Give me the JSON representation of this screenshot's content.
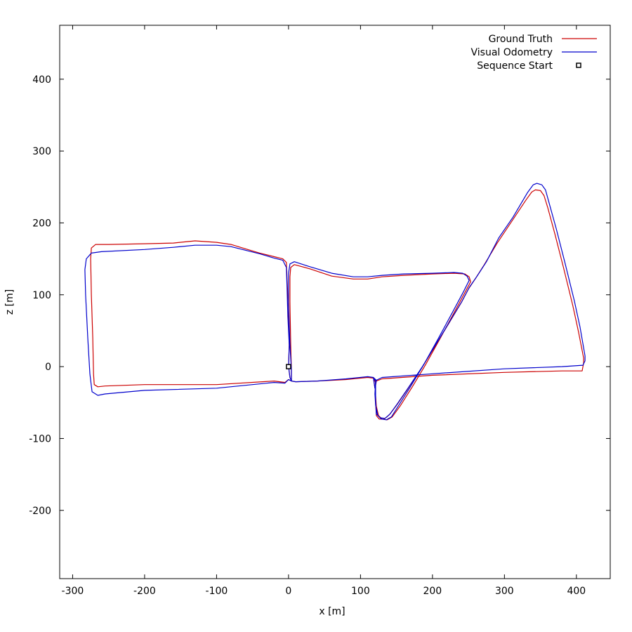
{
  "chart_data": {
    "type": "line",
    "xlabel": "x [m]",
    "ylabel": "z [m]",
    "xlim": [
      -318,
      447
    ],
    "ylim": [
      -295,
      475
    ],
    "xticks": [
      -300,
      -200,
      -100,
      0,
      100,
      200,
      300,
      400
    ],
    "yticks": [
      -200,
      -100,
      0,
      100,
      200,
      300,
      400
    ],
    "grid": false,
    "legend_position": "top-right",
    "series": [
      {
        "name": "Ground Truth",
        "color": "#cc0000",
        "points": [
          [
            0,
            0
          ],
          [
            2,
            -15
          ],
          [
            4,
            -20
          ],
          [
            10,
            -21
          ],
          [
            40,
            -20
          ],
          [
            80,
            -18
          ],
          [
            110,
            -15
          ],
          [
            118,
            -16
          ],
          [
            121,
            -22
          ],
          [
            121,
            -50
          ],
          [
            122,
            -68
          ],
          [
            126,
            -73
          ],
          [
            133,
            -73
          ],
          [
            140,
            -67
          ],
          [
            150,
            -54
          ],
          [
            165,
            -32
          ],
          [
            185,
            -2
          ],
          [
            205,
            31
          ],
          [
            225,
            64
          ],
          [
            240,
            89
          ],
          [
            250,
            108
          ],
          [
            260,
            123
          ],
          [
            272,
            142
          ],
          [
            290,
            172
          ],
          [
            310,
            202
          ],
          [
            330,
            232
          ],
          [
            338,
            243
          ],
          [
            343,
            246
          ],
          [
            350,
            245
          ],
          [
            355,
            238
          ],
          [
            360,
            222
          ],
          [
            370,
            185
          ],
          [
            382,
            138
          ],
          [
            395,
            85
          ],
          [
            403,
            48
          ],
          [
            410,
            12
          ],
          [
            410,
            5
          ],
          [
            408,
            -6
          ],
          [
            380,
            -6
          ],
          [
            300,
            -8
          ],
          [
            200,
            -12
          ],
          [
            130,
            -17
          ],
          [
            122,
            -20
          ],
          [
            121,
            -26
          ],
          [
            120,
            -30
          ],
          [
            118,
            -16
          ],
          [
            110,
            -15
          ],
          [
            80,
            -18
          ],
          [
            40,
            -20
          ],
          [
            10,
            -21
          ],
          [
            4,
            -20
          ],
          [
            4,
            -5
          ],
          [
            3,
            30
          ],
          [
            2,
            90
          ],
          [
            2,
            125
          ],
          [
            3,
            138
          ],
          [
            8,
            142
          ],
          [
            30,
            136
          ],
          [
            60,
            126
          ],
          [
            90,
            122
          ],
          [
            110,
            122
          ],
          [
            130,
            125
          ],
          [
            160,
            127
          ],
          [
            200,
            129
          ],
          [
            230,
            130
          ],
          [
            245,
            129
          ],
          [
            251,
            125
          ],
          [
            253,
            118
          ],
          [
            245,
            103
          ],
          [
            230,
            75
          ],
          [
            210,
            38
          ],
          [
            190,
            2
          ],
          [
            172,
            -28
          ],
          [
            155,
            -55
          ],
          [
            144,
            -70
          ],
          [
            137,
            -74
          ],
          [
            130,
            -73
          ],
          [
            125,
            -68
          ],
          [
            122,
            -55
          ],
          [
            121,
            -40
          ],
          [
            121,
            -22
          ],
          [
            122,
            -20
          ],
          [
            118,
            -16
          ],
          [
            110,
            -15
          ],
          [
            80,
            -18
          ],
          [
            40,
            -20
          ],
          [
            10,
            -21
          ],
          [
            4,
            -20
          ],
          [
            0,
            -18
          ],
          [
            -5,
            -22
          ],
          [
            -20,
            -20
          ],
          [
            -100,
            -25
          ],
          [
            -200,
            -25
          ],
          [
            -255,
            -27
          ],
          [
            -265,
            -28
          ],
          [
            -270,
            -25
          ],
          [
            -271,
            -10
          ],
          [
            -272,
            40
          ],
          [
            -274,
            100
          ],
          [
            -275,
            150
          ],
          [
            -274,
            165
          ],
          [
            -268,
            170
          ],
          [
            -250,
            170
          ],
          [
            -200,
            171
          ],
          [
            -160,
            172
          ],
          [
            -130,
            175
          ],
          [
            -100,
            173
          ],
          [
            -80,
            170
          ],
          [
            -60,
            164
          ],
          [
            -40,
            158
          ],
          [
            -20,
            153
          ],
          [
            -8,
            150
          ],
          [
            -3,
            145
          ],
          [
            -2,
            120
          ],
          [
            0,
            80
          ],
          [
            1,
            30
          ],
          [
            0,
            0
          ]
        ]
      },
      {
        "name": "Visual Odometry",
        "color": "#0000cc",
        "points": [
          [
            0,
            0
          ],
          [
            2,
            -15
          ],
          [
            4,
            -20
          ],
          [
            10,
            -21
          ],
          [
            40,
            -20
          ],
          [
            80,
            -17
          ],
          [
            110,
            -14
          ],
          [
            118,
            -15
          ],
          [
            121,
            -20
          ],
          [
            121,
            -48
          ],
          [
            122,
            -66
          ],
          [
            127,
            -71
          ],
          [
            134,
            -72
          ],
          [
            141,
            -66
          ],
          [
            151,
            -52
          ],
          [
            166,
            -30
          ],
          [
            186,
            0
          ],
          [
            206,
            33
          ],
          [
            226,
            66
          ],
          [
            241,
            91
          ],
          [
            251,
            110
          ],
          [
            262,
            126
          ],
          [
            275,
            146
          ],
          [
            292,
            179
          ],
          [
            312,
            208
          ],
          [
            332,
            242
          ],
          [
            340,
            253
          ],
          [
            345,
            255
          ],
          [
            352,
            253
          ],
          [
            357,
            246
          ],
          [
            362,
            228
          ],
          [
            372,
            192
          ],
          [
            384,
            145
          ],
          [
            397,
            92
          ],
          [
            405,
            55
          ],
          [
            412,
            15
          ],
          [
            412,
            8
          ],
          [
            409,
            2
          ],
          [
            380,
            0
          ],
          [
            300,
            -3
          ],
          [
            200,
            -10
          ],
          [
            130,
            -15
          ],
          [
            122,
            -19
          ],
          [
            121,
            -25
          ],
          [
            120,
            -30
          ],
          [
            118,
            -15
          ],
          [
            110,
            -14
          ],
          [
            80,
            -17
          ],
          [
            40,
            -20
          ],
          [
            10,
            -21
          ],
          [
            4,
            -20
          ],
          [
            4,
            -5
          ],
          [
            2,
            30
          ],
          [
            0,
            90
          ],
          [
            0,
            130
          ],
          [
            2,
            143
          ],
          [
            8,
            146
          ],
          [
            30,
            139
          ],
          [
            60,
            130
          ],
          [
            90,
            125
          ],
          [
            110,
            125
          ],
          [
            130,
            127
          ],
          [
            160,
            129
          ],
          [
            200,
            130
          ],
          [
            230,
            131
          ],
          [
            242,
            130
          ],
          [
            248,
            126
          ],
          [
            251,
            120
          ],
          [
            243,
            104
          ],
          [
            228,
            76
          ],
          [
            208,
            39
          ],
          [
            188,
            3
          ],
          [
            170,
            -27
          ],
          [
            153,
            -54
          ],
          [
            143,
            -70
          ],
          [
            136,
            -74
          ],
          [
            129,
            -73
          ],
          [
            124,
            -68
          ],
          [
            121,
            -54
          ],
          [
            120,
            -38
          ],
          [
            121,
            -20
          ],
          [
            122,
            -19
          ],
          [
            118,
            -15
          ],
          [
            110,
            -14
          ],
          [
            80,
            -17
          ],
          [
            40,
            -20
          ],
          [
            10,
            -21
          ],
          [
            4,
            -20
          ],
          [
            0,
            -18
          ],
          [
            -5,
            -23
          ],
          [
            -20,
            -22
          ],
          [
            -100,
            -30
          ],
          [
            -200,
            -33
          ],
          [
            -255,
            -38
          ],
          [
            -265,
            -40
          ],
          [
            -273,
            -35
          ],
          [
            -276,
            -10
          ],
          [
            -279,
            40
          ],
          [
            -282,
            100
          ],
          [
            -283,
            135
          ],
          [
            -281,
            150
          ],
          [
            -274,
            158
          ],
          [
            -260,
            160
          ],
          [
            -200,
            163
          ],
          [
            -160,
            166
          ],
          [
            -130,
            169
          ],
          [
            -100,
            169
          ],
          [
            -80,
            167
          ],
          [
            -60,
            162
          ],
          [
            -40,
            157
          ],
          [
            -20,
            151
          ],
          [
            -8,
            148
          ],
          [
            -3,
            138
          ],
          [
            -2,
            110
          ],
          [
            -1,
            70
          ],
          [
            1,
            30
          ],
          [
            0,
            0
          ]
        ]
      }
    ],
    "marker": {
      "name": "Sequence Start",
      "x": 0,
      "y": 0
    }
  }
}
